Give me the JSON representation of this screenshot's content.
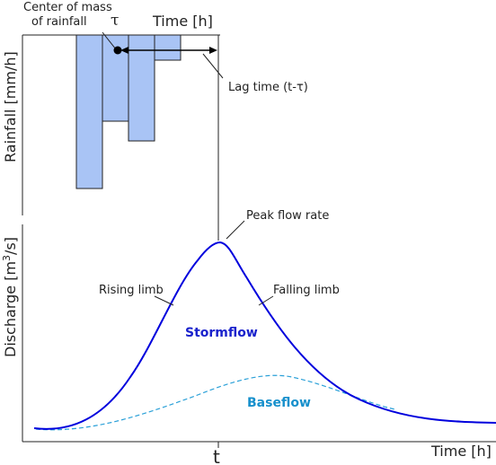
{
  "colors": {
    "hydrograph": "#0000dd",
    "baseflow": "#2aa0d8",
    "stormflow_label": "#1a22cc",
    "baseflow_label": "#1790cc",
    "rain_fill": "#a9c4f5",
    "axis": "#222222"
  },
  "rainfall": {
    "ylabel": "Rainfall [mm/h]",
    "xlabel": "Time [h]",
    "center_label_line1": "Center of mass",
    "center_label_line2": "of rainfall",
    "tau": "τ",
    "lag_label": "Lag time (t-τ)",
    "bars_depth": [
      170,
      95,
      117,
      27
    ]
  },
  "discharge": {
    "ylabel_pre": "Discharge [m",
    "ylabel_sup": "3",
    "ylabel_post": "/s]",
    "xlabel": "Time [h]",
    "t_label": "t",
    "peak_label": "Peak flow rate",
    "rising_label": "Rising limb",
    "falling_label": "Falling limb",
    "stormflow_label": "Stormflow",
    "baseflow_label": "Baseflow"
  }
}
